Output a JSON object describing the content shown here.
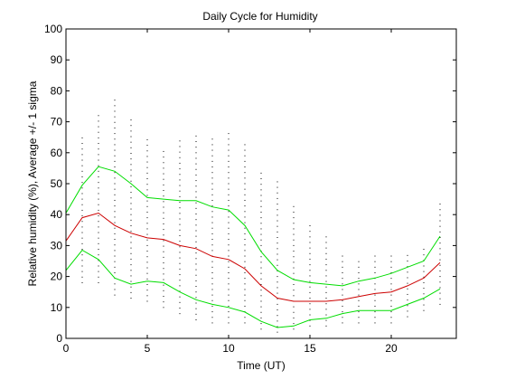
{
  "chart_data": {
    "type": "line",
    "title": "Daily Cycle for Humidity",
    "xlabel": "Time (UT)",
    "ylabel": "Relative humidity (%), Average +/- 1 sigma",
    "xlim": [
      0,
      24
    ],
    "ylim": [
      0,
      100
    ],
    "xticks": [
      0,
      5,
      10,
      15,
      20
    ],
    "yticks": [
      0,
      10,
      20,
      30,
      40,
      50,
      60,
      70,
      80,
      90,
      100
    ],
    "grid": false,
    "legend": "none",
    "x": [
      0,
      1,
      2,
      3,
      4,
      5,
      6,
      7,
      8,
      9,
      10,
      11,
      12,
      13,
      14,
      15,
      16,
      17,
      18,
      19,
      20,
      21,
      22,
      23
    ],
    "series": [
      {
        "role": "average",
        "color": "#cc0000",
        "values": [
          31.5,
          39,
          40.5,
          36.5,
          34,
          32.5,
          32,
          30,
          29,
          26.5,
          25.5,
          22.5,
          17,
          13,
          12,
          12,
          12,
          12.5,
          13.5,
          14.5,
          15,
          17,
          19.5,
          24.5
        ]
      },
      {
        "role": "average + 1 sigma",
        "color": "#00dd00",
        "values": [
          40.5,
          49.5,
          55.5,
          54,
          50,
          45.5,
          45,
          44.5,
          44.5,
          42.5,
          41.5,
          36.5,
          28,
          22,
          19,
          18,
          17.5,
          17,
          18.5,
          19.5,
          21,
          23,
          25,
          33
        ]
      },
      {
        "role": "average - 1 sigma",
        "color": "#00dd00",
        "values": [
          22,
          28.5,
          25.5,
          19.5,
          17.5,
          18.5,
          18,
          15,
          12.5,
          11,
          10,
          8.5,
          5.5,
          3.5,
          4,
          6,
          6.5,
          8,
          9,
          9,
          9,
          11,
          13,
          16
        ]
      }
    ],
    "observation_scatter": {
      "color": "#000000",
      "ranges": [
        [
          17,
          46
        ],
        [
          18,
          66
        ],
        [
          18,
          72
        ],
        [
          14,
          77
        ],
        [
          13,
          71
        ],
        [
          12,
          65
        ],
        [
          10,
          62
        ],
        [
          8,
          65
        ],
        [
          6,
          67
        ],
        [
          5,
          66
        ],
        [
          5,
          67
        ],
        [
          5,
          63
        ],
        [
          3,
          54
        ],
        [
          2,
          52
        ],
        [
          3,
          44
        ],
        [
          4,
          38
        ],
        [
          4,
          33
        ],
        [
          5,
          28
        ],
        [
          5,
          25
        ],
        [
          5,
          27
        ],
        [
          5,
          27
        ],
        [
          7,
          28
        ],
        [
          9,
          30
        ],
        [
          11,
          45
        ]
      ]
    }
  }
}
